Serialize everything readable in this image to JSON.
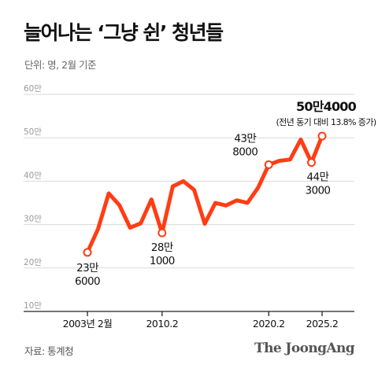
{
  "header": {
    "title": "늘어나는 ‘그냥 쉰’ 청년들",
    "unit": "단위: 명, 2월 기준"
  },
  "footer": {
    "source": "자료: 통계청",
    "brand": "The JoongAng"
  },
  "colors": {
    "line": "#ff3d14",
    "grid": "#d9d9d9",
    "axis": "#222222"
  },
  "chart_data": {
    "type": "line",
    "title": "늘어나는 ‘그냥 쉰’ 청년들",
    "ylabel": "단위: 명, 2월 기준",
    "ylim": [
      10,
      60
    ],
    "yticks": [
      {
        "value": 10,
        "label": "10만"
      },
      {
        "value": 20,
        "label": "20만"
      },
      {
        "value": 30,
        "label": "30만"
      },
      {
        "value": 40,
        "label": "40만"
      },
      {
        "value": 50,
        "label": "50만"
      },
      {
        "value": 60,
        "label": "60만"
      }
    ],
    "xlim": [
      2003,
      2025
    ],
    "xticks": [
      {
        "value": 2003,
        "label": "2003년 2월"
      },
      {
        "value": 2010,
        "label": "2010.2"
      },
      {
        "value": 2020,
        "label": "2020.2"
      },
      {
        "value": 2025,
        "label": "2025.2"
      }
    ],
    "grid": true,
    "series": [
      {
        "x": [
          2003,
          2004,
          2005,
          2006,
          2007,
          2008,
          2009,
          2010,
          2011,
          2012,
          2013,
          2014,
          2015,
          2016,
          2017,
          2018,
          2019,
          2020,
          2021,
          2022,
          2023,
          2024,
          2025
        ],
        "values": [
          23.6,
          29.0,
          37.2,
          34.5,
          29.3,
          30.3,
          35.8,
          28.1,
          38.8,
          40.0,
          38.0,
          30.2,
          35.0,
          34.4,
          35.6,
          35.0,
          38.5,
          43.8,
          44.7,
          45.0,
          49.6,
          44.3,
          50.4
        ]
      }
    ],
    "annotations": [
      {
        "x": 2003,
        "value": 23.6,
        "line1": "23만",
        "line2": "6000"
      },
      {
        "x": 2010,
        "value": 28.1,
        "line1": "28만",
        "line2": "1000"
      },
      {
        "x": 2020,
        "value": 43.8,
        "line1": "43만",
        "line2": "8000"
      },
      {
        "x": 2024,
        "value": 44.3,
        "line1": "44만",
        "line2": "3000"
      },
      {
        "x": 2025,
        "value": 50.4,
        "line1": "50만4000",
        "line2": "(전년 동기 대비 13.8% 증가)"
      }
    ]
  }
}
